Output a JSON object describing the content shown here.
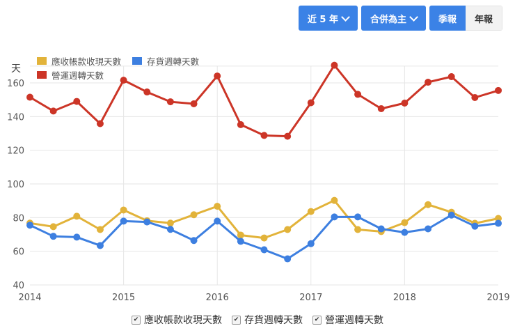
{
  "toolbar": {
    "range_label": "近 5 年",
    "scope_label": "合併為主",
    "quarterly_label": "季報",
    "annual_label": "年報",
    "active_period": "quarterly",
    "accent_color": "#3b82e6"
  },
  "bottom_legend": [
    {
      "label": "應收帳款收現天數",
      "checked": true
    },
    {
      "label": "存貨週轉天數",
      "checked": true
    },
    {
      "label": "營運週轉天數",
      "checked": true
    }
  ],
  "chart_data": {
    "type": "line",
    "title": "",
    "xlabel": "",
    "ylabel": "天",
    "ylim": [
      40,
      170
    ],
    "yticks": [
      40,
      60,
      80,
      100,
      120,
      140,
      160
    ],
    "xticks": [
      "2014",
      "2015",
      "2016",
      "2017",
      "2018",
      "2019"
    ],
    "grid": true,
    "legend_position": "top-left inside",
    "x": [
      "2014Q1",
      "2014Q2",
      "2014Q3",
      "2014Q4",
      "2015Q1",
      "2015Q2",
      "2015Q3",
      "2015Q4",
      "2016Q1",
      "2016Q2",
      "2016Q3",
      "2016Q4",
      "2017Q1",
      "2017Q2",
      "2017Q3",
      "2017Q4",
      "2018Q1",
      "2018Q2",
      "2018Q3",
      "2018Q4",
      "2019Q1"
    ],
    "series": [
      {
        "name": "應收帳款收現天數",
        "color": "#e2b33a",
        "values": [
          76.7,
          74.6,
          80.8,
          72.9,
          84.5,
          78.1,
          76.7,
          81.7,
          86.7,
          69.6,
          67.9,
          72.9,
          83.6,
          90.2,
          72.9,
          71.7,
          77.0,
          87.7,
          83.2,
          76.6,
          79.5
        ]
      },
      {
        "name": "存貨週轉天數",
        "color": "#3d7fe0",
        "values": [
          75.5,
          68.9,
          68.4,
          63.4,
          77.9,
          77.4,
          73.0,
          66.4,
          77.9,
          65.9,
          60.9,
          55.5,
          64.5,
          80.4,
          80.4,
          73.3,
          71.2,
          73.3,
          81.5,
          74.9,
          76.6
        ]
      },
      {
        "name": "營運週轉天數",
        "color": "#cc3527",
        "values": [
          151.5,
          143.3,
          149.0,
          135.8,
          161.6,
          154.6,
          148.8,
          147.6,
          164.1,
          135.2,
          128.8,
          128.3,
          148.2,
          170.5,
          153.2,
          144.7,
          148.0,
          160.4,
          163.7,
          151.3,
          155.5
        ]
      }
    ]
  }
}
